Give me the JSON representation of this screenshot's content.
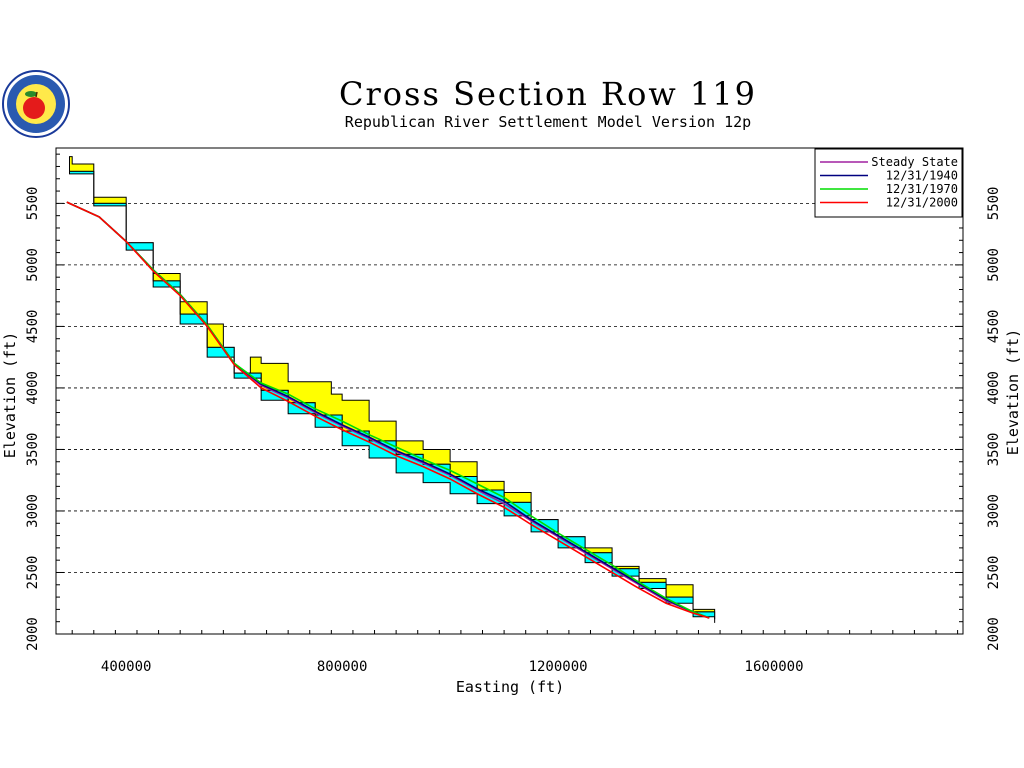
{
  "chart_data": {
    "type": "area",
    "title": "Cross Section Row 119",
    "subtitle": "Republican River Settlement Model Version 12p",
    "xlabel": "Easting (ft)",
    "ylabel": "Elevation (ft)",
    "ylabel_right": "Elevation (ft)",
    "xlim": [
      270000,
      1950000
    ],
    "ylim": [
      2000,
      5950
    ],
    "x_ticks": [
      "400000",
      "800000",
      "1200000",
      "1600000"
    ],
    "x_tick_values": [
      400000,
      800000,
      1200000,
      1600000
    ],
    "y_ticks": [
      "2000",
      "2500",
      "3000",
      "3500",
      "4000",
      "4500",
      "5000",
      "5500"
    ],
    "y_tick_values": [
      2000,
      2500,
      3000,
      3500,
      4000,
      4500,
      5000,
      5500
    ],
    "grid": "horizontal dashed",
    "legend_position": "top-right",
    "colors": {
      "yellow_layer": "#ffff00",
      "cyan_layer": "#00ffff",
      "steady_state": "#a020a0",
      "y1940": "#000080",
      "y1970": "#00dd00",
      "y2000": "#ff0000"
    },
    "layers": {
      "top_surface": {
        "x": [
          295000,
          300000,
          340000,
          400000,
          450000,
          500000,
          550000,
          580000,
          600000,
          630000,
          650000,
          700000,
          730000,
          780000,
          800000,
          850000,
          900000,
          950000,
          1000000,
          1050000,
          1100000,
          1150000,
          1200000,
          1250000,
          1300000,
          1350000,
          1400000,
          1420000,
          1450000,
          1490000
        ],
        "y": [
          5880,
          5820,
          5550,
          5180,
          4930,
          4700,
          4520,
          4320,
          4120,
          4250,
          4200,
          4050,
          4050,
          3950,
          3900,
          3730,
          3570,
          3500,
          3400,
          3240,
          3150,
          2920,
          2770,
          2700,
          2550,
          2450,
          2400,
          2400,
          2200,
          2150
        ]
      },
      "cyan_top": {
        "x": [
          295000,
          340000,
          400000,
          450000,
          500000,
          550000,
          600000,
          650000,
          700000,
          750000,
          800000,
          850000,
          900000,
          950000,
          1000000,
          1050000,
          1100000,
          1150000,
          1200000,
          1250000,
          1300000,
          1350000,
          1400000,
          1450000,
          1490000
        ],
        "y": [
          5760,
          5500,
          5180,
          4870,
          4600,
          4330,
          4120,
          3980,
          3880,
          3780,
          3650,
          3570,
          3460,
          3380,
          3280,
          3170,
          3070,
          2930,
          2790,
          2660,
          2530,
          2420,
          2300,
          2180,
          2120
        ]
      },
      "bottom_surface": {
        "x": [
          295000,
          340000,
          400000,
          450000,
          500000,
          550000,
          600000,
          650000,
          700000,
          750000,
          800000,
          850000,
          900000,
          950000,
          1000000,
          1050000,
          1100000,
          1150000,
          1200000,
          1250000,
          1300000,
          1350000,
          1400000,
          1450000,
          1490000
        ],
        "y": [
          5740,
          5480,
          5120,
          4820,
          4520,
          4250,
          4080,
          3900,
          3790,
          3680,
          3530,
          3430,
          3310,
          3230,
          3140,
          3060,
          2960,
          2830,
          2700,
          2580,
          2470,
          2370,
          2250,
          2140,
          2090
        ]
      }
    },
    "series": [
      {
        "name": "Steady State",
        "color": "#a020a0",
        "x": [
          290000,
          350000,
          400000,
          450000,
          500000,
          550000,
          600000,
          650000,
          700000,
          750000,
          800000,
          850000,
          900000,
          950000,
          1000000,
          1050000,
          1100000,
          1150000,
          1200000,
          1250000,
          1300000,
          1350000,
          1400000,
          1450000,
          1480000
        ],
        "y": [
          5510,
          5390,
          5190,
          4960,
          4760,
          4510,
          4200,
          4020,
          3920,
          3800,
          3690,
          3590,
          3480,
          3390,
          3290,
          3170,
          3060,
          2920,
          2790,
          2660,
          2530,
          2400,
          2270,
          2180,
          2130
        ]
      },
      {
        "name": "12/31/1940",
        "color": "#000080",
        "x": [
          290000,
          350000,
          400000,
          450000,
          500000,
          550000,
          600000,
          650000,
          700000,
          750000,
          800000,
          850000,
          900000,
          950000,
          1000000,
          1050000,
          1100000,
          1150000,
          1200000,
          1250000,
          1300000,
          1350000,
          1400000,
          1450000,
          1480000
        ],
        "y": [
          5510,
          5390,
          5190,
          4960,
          4760,
          4510,
          4200,
          4030,
          3930,
          3810,
          3700,
          3600,
          3490,
          3400,
          3300,
          3180,
          3080,
          2930,
          2800,
          2670,
          2540,
          2410,
          2280,
          2180,
          2130
        ]
      },
      {
        "name": "12/31/1970",
        "color": "#00dd00",
        "x": [
          290000,
          350000,
          400000,
          450000,
          500000,
          550000,
          600000,
          650000,
          700000,
          750000,
          800000,
          850000,
          900000,
          950000,
          1000000,
          1050000,
          1100000,
          1150000,
          1200000,
          1250000,
          1300000,
          1350000,
          1400000,
          1450000,
          1480000
        ],
        "y": [
          5510,
          5390,
          5190,
          4960,
          4760,
          4510,
          4200,
          4040,
          3950,
          3830,
          3730,
          3620,
          3520,
          3420,
          3330,
          3220,
          3110,
          2960,
          2820,
          2690,
          2560,
          2420,
          2290,
          2180,
          2130
        ]
      },
      {
        "name": "12/31/2000",
        "color": "#ff0000",
        "x": [
          290000,
          350000,
          400000,
          450000,
          500000,
          550000,
          600000,
          650000,
          700000,
          750000,
          800000,
          850000,
          900000,
          950000,
          1000000,
          1050000,
          1100000,
          1150000,
          1200000,
          1250000,
          1300000,
          1350000,
          1400000,
          1450000,
          1480000
        ],
        "y": [
          5510,
          5390,
          5190,
          4950,
          4750,
          4500,
          4190,
          4000,
          3890,
          3770,
          3660,
          3560,
          3450,
          3360,
          3260,
          3140,
          3030,
          2890,
          2760,
          2630,
          2500,
          2370,
          2250,
          2170,
          2130
        ]
      }
    ]
  },
  "logo": {
    "name": "seal-logo",
    "text_top": "REPUBLICAN RIVER",
    "text_bottom": "COMPACT"
  }
}
